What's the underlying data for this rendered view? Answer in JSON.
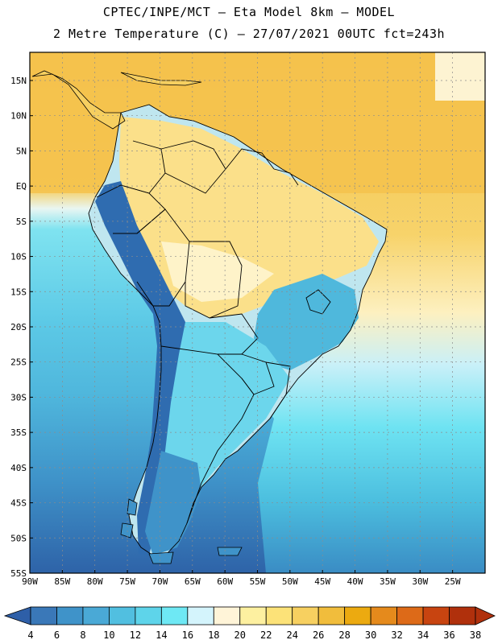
{
  "header": {
    "line1": "CPTEC/INPE/MCT –  Eta Model 8km – MODEL",
    "line2": "2 Metre Temperature (C) – 27/07/2021 00UTC fct=243h"
  },
  "map": {
    "lon_range": [
      -90,
      -20
    ],
    "lat_range": [
      -55,
      19
    ],
    "lon_ticks": [
      "90W",
      "85W",
      "80W",
      "75W",
      "70W",
      "65W",
      "60W",
      "55W",
      "50W",
      "45W",
      "40W",
      "35W",
      "30W",
      "25W"
    ],
    "lat_ticks": [
      "15N",
      "10N",
      "5N",
      "EQ",
      "5S",
      "10S",
      "15S",
      "20S",
      "25S",
      "30S",
      "35S",
      "40S",
      "45S",
      "50S",
      "55S"
    ],
    "background_color": "#f4c24c",
    "land_outline_color": "#000000",
    "grid_color": "#8c8c8c"
  },
  "colorbar": {
    "labels": [
      "4",
      "6",
      "8",
      "10",
      "12",
      "14",
      "16",
      "18",
      "20",
      "22",
      "24",
      "26",
      "28",
      "30",
      "32",
      "34",
      "36",
      "38"
    ],
    "colors": [
      "#2e5fa8",
      "#3a78b8",
      "#3f93c9",
      "#4aa9d6",
      "#51bfe0",
      "#5ed4ea",
      "#6ee8f4",
      "#d4f4fc",
      "#fff4d8",
      "#fdf0a0",
      "#fce278",
      "#f7d060",
      "#f1bd3c",
      "#ecaa10",
      "#e58a1c",
      "#dd6a18",
      "#c84410",
      "#b0300c"
    ]
  }
}
